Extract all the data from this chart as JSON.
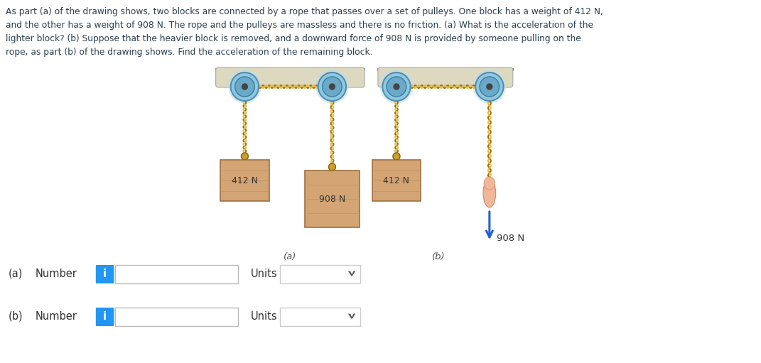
{
  "title_lines": [
    "As part (a) of the drawing shows, two blocks are connected by a rope that passes over a set of pulleys. One block has a weight of 412 N,",
    "and the other has a weight of 908 N. The rope and the pulleys are massless and there is no friction. (a) What is the acceleration of the",
    "lighter block? (b) Suppose that the heavier block is removed, and a downward force of 908 N is provided by someone pulling on the",
    "rope, as part (b) of the drawing shows. Find the acceleration of the remaining block."
  ],
  "background_color": "#ffffff",
  "text_color": "#2c3e50",
  "block_color": "#d4a574",
  "block_edge_color": "#a07040",
  "block_grain_color": "#c49060",
  "ceiling_body_color": "#ddd8c0",
  "ceiling_top_color": "#888070",
  "pulley_outer_color": "#90c8e0",
  "pulley_inner_color": "#6aaac8",
  "pulley_center_color": "#444444",
  "rope_color": "#c8a030",
  "rope_horiz_color": "#c8a030",
  "label_412a": "412 N",
  "label_908a": "908 N",
  "label_412b": "412 N",
  "label_908b": "908 N",
  "label_a": "(a)",
  "label_b": "(b)",
  "arrow_color": "#2060cc",
  "hand_color": "#f0b898",
  "hand_edge_color": "#d08868",
  "info_button_color": "#2196f3",
  "input_border_color": "#bbbbbb",
  "dropdown_border_color": "#cccccc"
}
